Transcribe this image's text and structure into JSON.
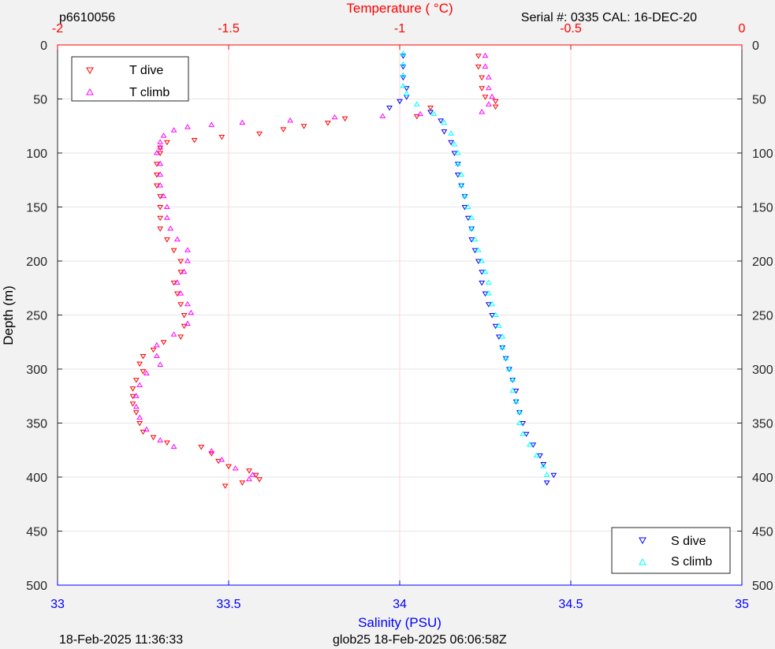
{
  "header": {
    "left": "p6610056",
    "top_axis_title": "Temperature (   °C)",
    "right": "Serial #: 0335  CAL: 16-DEC-20"
  },
  "footer": {
    "left": "18-Feb-2025 11:36:33",
    "center": "glob25 18-Feb-2025 06:06:58Z"
  },
  "colors": {
    "temperature_axis": "#ff0000",
    "salinity_axis": "#0000ff",
    "t_dive": "#ff0000",
    "t_climb": "#ff00ff",
    "s_dive": "#0000ff",
    "s_climb": "#00ffff",
    "grid": "#e6e6e6",
    "temp_grid": "#ffd0d0"
  },
  "chart_data": {
    "type": "scatter",
    "ylabel": "Depth (m)",
    "xlabel_bottom": "Salinity (PSU)",
    "xlabel_top": "Temperature (   °C)",
    "ylim": [
      0,
      500
    ],
    "y_reversed": true,
    "y_ticks": [
      0,
      50,
      100,
      150,
      200,
      250,
      300,
      350,
      400,
      450,
      500
    ],
    "salinity_xlim": [
      33,
      35
    ],
    "salinity_ticks": [
      33,
      33.5,
      34,
      34.5,
      35
    ],
    "temperature_xlim": [
      -2,
      0
    ],
    "temperature_ticks": [
      -2,
      -1.5,
      -1,
      -0.5,
      0
    ],
    "grid": true,
    "legends": [
      {
        "position": "top-left",
        "entries": [
          "T dive",
          "T climb"
        ]
      },
      {
        "position": "bottom-right",
        "entries": [
          "S dive",
          "S climb"
        ]
      }
    ],
    "series": [
      {
        "name": "T dive",
        "axis": "temperature",
        "marker": "triangle-down",
        "points": [
          [
            -0.77,
            10
          ],
          [
            -0.77,
            20
          ],
          [
            -0.76,
            30
          ],
          [
            -0.76,
            40
          ],
          [
            -0.75,
            48
          ],
          [
            -0.72,
            52
          ],
          [
            -0.72,
            57
          ],
          [
            -0.91,
            58
          ],
          [
            -0.95,
            66
          ],
          [
            -1.16,
            68
          ],
          [
            -1.21,
            72
          ],
          [
            -1.28,
            75
          ],
          [
            -1.34,
            78
          ],
          [
            -1.41,
            82
          ],
          [
            -1.52,
            85
          ],
          [
            -1.6,
            88
          ],
          [
            -1.68,
            90
          ],
          [
            -1.7,
            95
          ],
          [
            -1.7,
            100
          ],
          [
            -1.71,
            110
          ],
          [
            -1.71,
            120
          ],
          [
            -1.71,
            130
          ],
          [
            -1.7,
            140
          ],
          [
            -1.7,
            150
          ],
          [
            -1.7,
            160
          ],
          [
            -1.7,
            170
          ],
          [
            -1.68,
            180
          ],
          [
            -1.66,
            190
          ],
          [
            -1.64,
            200
          ],
          [
            -1.64,
            210
          ],
          [
            -1.66,
            220
          ],
          [
            -1.65,
            230
          ],
          [
            -1.64,
            240
          ],
          [
            -1.63,
            250
          ],
          [
            -1.63,
            260
          ],
          [
            -1.64,
            270
          ],
          [
            -1.69,
            275
          ],
          [
            -1.72,
            282
          ],
          [
            -1.75,
            288
          ],
          [
            -1.76,
            295
          ],
          [
            -1.75,
            302
          ],
          [
            -1.77,
            310
          ],
          [
            -1.78,
            318
          ],
          [
            -1.78,
            325
          ],
          [
            -1.78,
            332
          ],
          [
            -1.77,
            340
          ],
          [
            -1.76,
            350
          ],
          [
            -1.75,
            358
          ],
          [
            -1.72,
            363
          ],
          [
            -1.68,
            368
          ],
          [
            -1.58,
            372
          ],
          [
            -1.55,
            378
          ],
          [
            -1.53,
            385
          ],
          [
            -1.5,
            390
          ],
          [
            -1.44,
            394
          ],
          [
            -1.42,
            398
          ],
          [
            -1.41,
            402
          ],
          [
            -1.46,
            405
          ],
          [
            -1.51,
            408
          ]
        ]
      },
      {
        "name": "T climb",
        "axis": "temperature",
        "marker": "triangle-up",
        "points": [
          [
            -0.75,
            10
          ],
          [
            -0.75,
            20
          ],
          [
            -0.74,
            30
          ],
          [
            -0.74,
            40
          ],
          [
            -0.73,
            48
          ],
          [
            -0.74,
            55
          ],
          [
            -0.76,
            62
          ],
          [
            -0.94,
            64
          ],
          [
            -1.05,
            66
          ],
          [
            -1.19,
            67
          ],
          [
            -1.32,
            70
          ],
          [
            -1.46,
            72
          ],
          [
            -1.55,
            74
          ],
          [
            -1.62,
            76
          ],
          [
            -1.66,
            79
          ],
          [
            -1.69,
            84
          ],
          [
            -1.7,
            90
          ],
          [
            -1.7,
            95
          ],
          [
            -1.71,
            100
          ],
          [
            -1.7,
            110
          ],
          [
            -1.7,
            120
          ],
          [
            -1.7,
            130
          ],
          [
            -1.69,
            140
          ],
          [
            -1.68,
            150
          ],
          [
            -1.68,
            160
          ],
          [
            -1.67,
            170
          ],
          [
            -1.65,
            180
          ],
          [
            -1.62,
            190
          ],
          [
            -1.62,
            200
          ],
          [
            -1.63,
            210
          ],
          [
            -1.65,
            220
          ],
          [
            -1.64,
            230
          ],
          [
            -1.62,
            240
          ],
          [
            -1.61,
            248
          ],
          [
            -1.62,
            258
          ],
          [
            -1.66,
            268
          ],
          [
            -1.71,
            278
          ],
          [
            -1.71,
            288
          ],
          [
            -1.7,
            296
          ],
          [
            -1.74,
            304
          ],
          [
            -1.76,
            315
          ],
          [
            -1.77,
            325
          ],
          [
            -1.77,
            335
          ],
          [
            -1.76,
            345
          ],
          [
            -1.74,
            356
          ],
          [
            -1.7,
            366
          ],
          [
            -1.66,
            372
          ],
          [
            -1.55,
            376
          ],
          [
            -1.52,
            384
          ],
          [
            -1.48,
            392
          ],
          [
            -1.43,
            398
          ],
          [
            -1.44,
            402
          ]
        ]
      },
      {
        "name": "S dive",
        "axis": "salinity",
        "marker": "triangle-down",
        "points": [
          [
            34.01,
            10
          ],
          [
            34.01,
            20
          ],
          [
            34.01,
            30
          ],
          [
            34.02,
            40
          ],
          [
            34.02,
            48
          ],
          [
            34.0,
            52
          ],
          [
            33.97,
            58
          ],
          [
            34.09,
            62
          ],
          [
            34.12,
            70
          ],
          [
            34.13,
            80
          ],
          [
            34.15,
            90
          ],
          [
            34.16,
            100
          ],
          [
            34.17,
            110
          ],
          [
            34.17,
            120
          ],
          [
            34.18,
            130
          ],
          [
            34.19,
            140
          ],
          [
            34.19,
            150
          ],
          [
            34.2,
            160
          ],
          [
            34.21,
            170
          ],
          [
            34.21,
            180
          ],
          [
            34.22,
            190
          ],
          [
            34.23,
            200
          ],
          [
            34.24,
            210
          ],
          [
            34.24,
            220
          ],
          [
            34.25,
            230
          ],
          [
            34.26,
            240
          ],
          [
            34.27,
            250
          ],
          [
            34.28,
            260
          ],
          [
            34.29,
            270
          ],
          [
            34.3,
            280
          ],
          [
            34.31,
            290
          ],
          [
            34.32,
            300
          ],
          [
            34.33,
            310
          ],
          [
            34.34,
            320
          ],
          [
            34.34,
            330
          ],
          [
            34.35,
            340
          ],
          [
            34.36,
            350
          ],
          [
            34.37,
            360
          ],
          [
            34.39,
            370
          ],
          [
            34.41,
            380
          ],
          [
            34.42,
            388
          ],
          [
            34.45,
            398
          ],
          [
            34.43,
            405
          ]
        ]
      },
      {
        "name": "S climb",
        "axis": "salinity",
        "marker": "triangle-up",
        "points": [
          [
            34.01,
            8
          ],
          [
            34.01,
            18
          ],
          [
            34.01,
            28
          ],
          [
            34.01,
            38
          ],
          [
            34.02,
            45
          ],
          [
            34.05,
            55
          ],
          [
            34.1,
            64
          ],
          [
            34.13,
            72
          ],
          [
            34.15,
            82
          ],
          [
            34.16,
            92
          ],
          [
            34.17,
            100
          ],
          [
            34.17,
            110
          ],
          [
            34.18,
            120
          ],
          [
            34.18,
            130
          ],
          [
            34.19,
            140
          ],
          [
            34.2,
            150
          ],
          [
            34.21,
            160
          ],
          [
            34.21,
            170
          ],
          [
            34.22,
            180
          ],
          [
            34.23,
            190
          ],
          [
            34.24,
            200
          ],
          [
            34.25,
            210
          ],
          [
            34.26,
            220
          ],
          [
            34.26,
            230
          ],
          [
            34.27,
            240
          ],
          [
            34.28,
            250
          ],
          [
            34.29,
            260
          ],
          [
            34.3,
            270
          ],
          [
            34.3,
            280
          ],
          [
            34.31,
            290
          ],
          [
            34.32,
            300
          ],
          [
            34.33,
            310
          ],
          [
            34.33,
            320
          ],
          [
            34.34,
            330
          ],
          [
            34.35,
            340
          ],
          [
            34.35,
            350
          ],
          [
            34.36,
            360
          ],
          [
            34.38,
            370
          ],
          [
            34.4,
            380
          ],
          [
            34.42,
            390
          ],
          [
            34.43,
            398
          ]
        ]
      }
    ]
  }
}
